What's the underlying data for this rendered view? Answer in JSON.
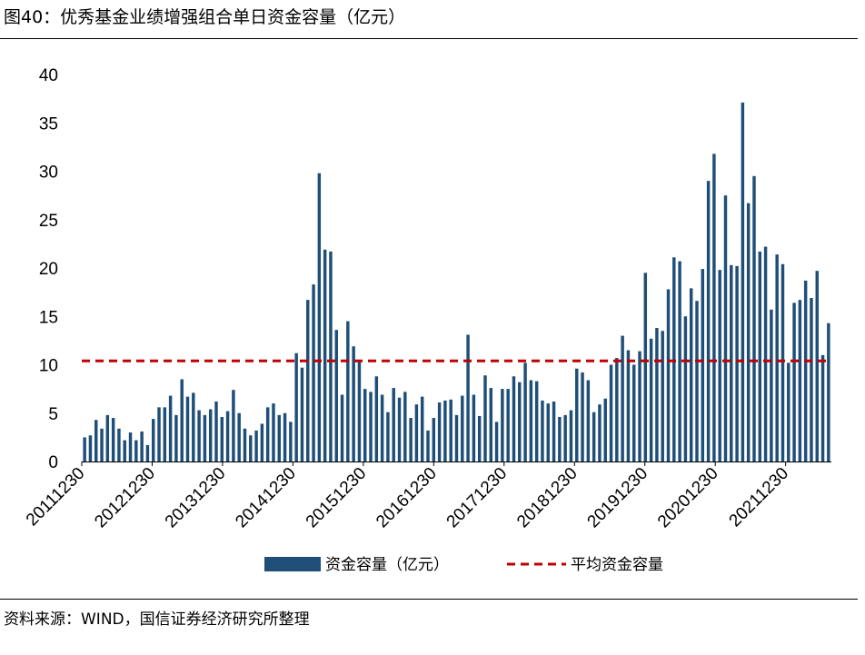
{
  "figure": {
    "title": "图40：优秀基金业绩增强组合单日资金容量（亿元）",
    "source": "资料来源：WIND，国信证券经济研究所整理"
  },
  "colors": {
    "bar": "#1f4e79",
    "average_line": "#c00000"
  },
  "chart_data": {
    "type": "bar",
    "title": "图40：优秀基金业绩增强组合单日资金容量（亿元）",
    "xlabel": "",
    "ylabel": "",
    "ylim": [
      0,
      40
    ],
    "yticks": [
      0,
      5,
      10,
      15,
      20,
      25,
      30,
      35,
      40
    ],
    "xtick_labels": [
      "20111230",
      "20121230",
      "20131230",
      "20141230",
      "20151230",
      "20161230",
      "20171230",
      "20181230",
      "20191230",
      "20201230",
      "20211230"
    ],
    "grid": false,
    "legend_position": "bottom",
    "series": [
      {
        "name": "资金容量（亿元）",
        "type": "bar",
        "values": [
          2.5,
          2.7,
          4.3,
          3.4,
          4.8,
          4.5,
          3.4,
          2.2,
          3.0,
          2.2,
          3.1,
          1.7,
          4.4,
          5.6,
          5.6,
          6.8,
          4.8,
          8.5,
          6.7,
          7.1,
          5.3,
          4.8,
          5.4,
          6.2,
          4.6,
          5.2,
          7.4,
          5.0,
          3.4,
          2.7,
          3.2,
          3.9,
          5.6,
          6.0,
          4.8,
          5.0,
          4.1,
          11.2,
          9.7,
          16.7,
          18.3,
          29.8,
          21.9,
          21.7,
          13.6,
          6.9,
          14.5,
          11.9,
          10.3,
          7.5,
          7.2,
          8.8,
          6.9,
          5.1,
          7.6,
          6.6,
          7.2,
          4.5,
          5.9,
          6.7,
          3.2,
          4.5,
          6.1,
          6.3,
          6.4,
          4.8,
          6.8,
          13.1,
          6.9,
          4.7,
          8.9,
          7.6,
          4.1,
          7.5,
          7.5,
          8.8,
          8.2,
          10.2,
          8.4,
          8.3,
          6.3,
          6.0,
          6.2,
          4.6,
          4.8,
          5.3,
          9.6,
          9.2,
          8.4,
          5.1,
          5.9,
          6.5,
          10.0,
          10.7,
          13.0,
          11.5,
          10.0,
          11.4,
          19.5,
          12.7,
          13.8,
          13.5,
          17.8,
          21.1,
          20.7,
          15.0,
          17.9,
          16.6,
          19.9,
          29.0,
          31.8,
          19.8,
          27.5,
          20.3,
          20.2,
          37.1,
          26.7,
          29.5,
          21.7,
          22.2,
          15.7,
          21.4,
          20.4,
          10.2,
          16.4,
          16.7,
          18.7,
          16.9,
          19.7,
          11.0,
          14.3
        ]
      },
      {
        "name": "平均资金容量",
        "type": "line",
        "style": "dashed",
        "value": 10.4
      }
    ]
  }
}
